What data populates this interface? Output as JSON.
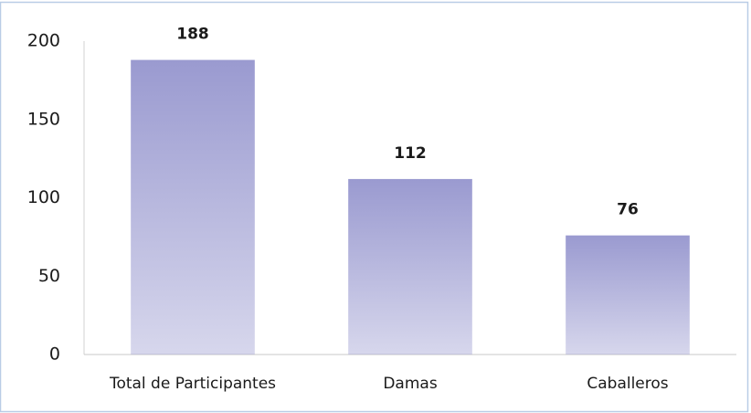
{
  "chart_data": {
    "type": "bar",
    "categories": [
      "Total de Participantes",
      "Damas",
      "Caballeros"
    ],
    "values": [
      188,
      112,
      76
    ],
    "color": "#9a9ad0",
    "ylim": [
      0,
      200
    ],
    "yticks": [
      0,
      50,
      100,
      150,
      200
    ],
    "grid": false,
    "data_labels": true
  }
}
